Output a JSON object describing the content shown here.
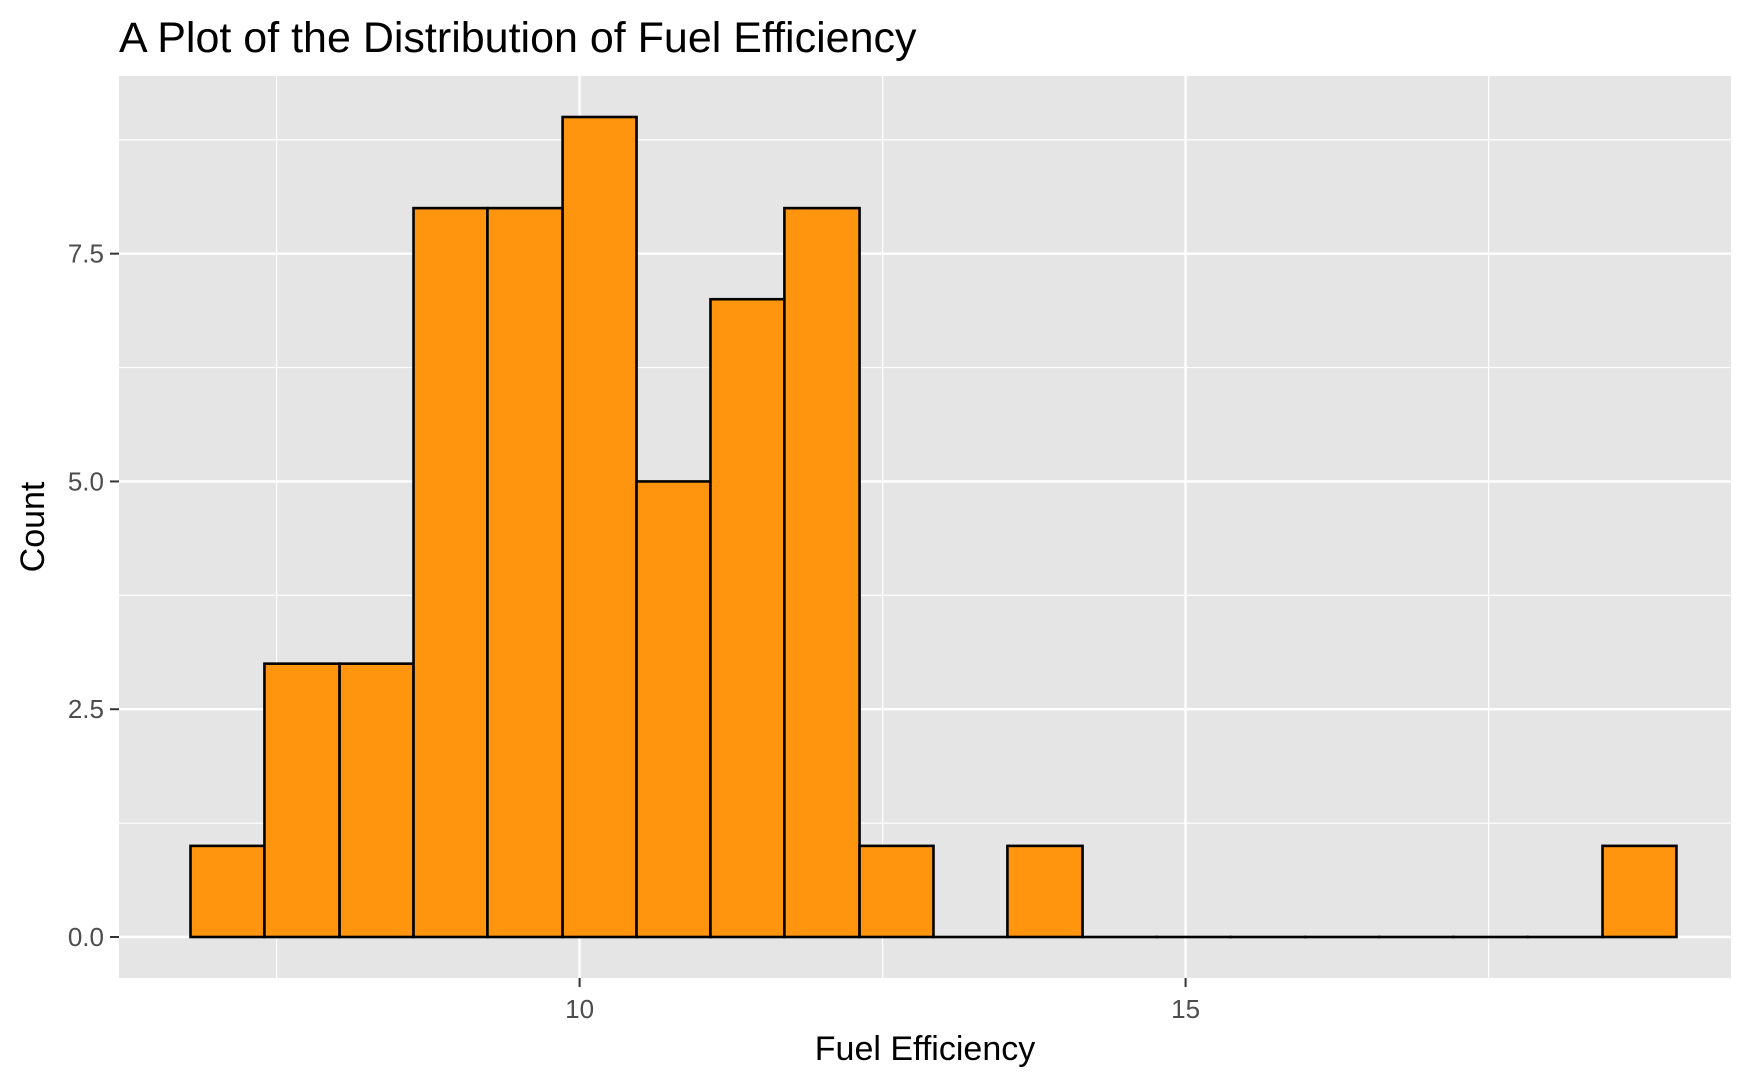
{
  "chart_data": {
    "type": "histogram",
    "title": "A Plot of the Distribution of Fuel Efficiency",
    "xlabel": "Fuel Efficiency",
    "ylabel": "Count",
    "xlim": [
      6.2,
      19.5
    ],
    "ylim": [
      -0.45,
      9.45
    ],
    "x_ticks": [
      10,
      15
    ],
    "x_tick_labels": [
      "10",
      "15"
    ],
    "y_ticks": [
      0,
      2.5,
      5,
      7.5
    ],
    "y_tick_labels": [
      "0.0",
      "2.5",
      "5.0",
      "7.5"
    ],
    "x_minor_ticks": [
      7.5,
      12.5,
      17.5
    ],
    "y_minor_ticks": [
      1.25,
      3.75,
      6.25,
      8.75
    ],
    "bin_width": 0.613,
    "bins": [
      {
        "start": 6.79,
        "end": 7.4,
        "count": 1
      },
      {
        "start": 7.4,
        "end": 8.02,
        "count": 3
      },
      {
        "start": 8.02,
        "end": 8.63,
        "count": 3
      },
      {
        "start": 8.63,
        "end": 9.24,
        "count": 8
      },
      {
        "start": 9.24,
        "end": 9.86,
        "count": 8
      },
      {
        "start": 9.86,
        "end": 10.47,
        "count": 9
      },
      {
        "start": 10.47,
        "end": 11.08,
        "count": 5
      },
      {
        "start": 11.08,
        "end": 11.69,
        "count": 7
      },
      {
        "start": 11.69,
        "end": 12.31,
        "count": 8
      },
      {
        "start": 12.31,
        "end": 12.92,
        "count": 1
      },
      {
        "start": 12.92,
        "end": 13.53,
        "count": 0
      },
      {
        "start": 13.53,
        "end": 14.15,
        "count": 1
      },
      {
        "start": 14.15,
        "end": 14.76,
        "count": 0
      },
      {
        "start": 14.76,
        "end": 15.37,
        "count": 0
      },
      {
        "start": 15.37,
        "end": 15.99,
        "count": 0
      },
      {
        "start": 15.99,
        "end": 16.6,
        "count": 0
      },
      {
        "start": 16.6,
        "end": 17.21,
        "count": 0
      },
      {
        "start": 17.21,
        "end": 17.82,
        "count": 0
      },
      {
        "start": 17.82,
        "end": 18.44,
        "count": 0
      },
      {
        "start": 18.44,
        "end": 19.05,
        "count": 1
      }
    ],
    "bar_fill": "#FF950E",
    "bar_outline": "#000000",
    "panel_background": "#E5E5E5",
    "grid_color": "#FFFFFF",
    "grid": true,
    "legend": "none"
  }
}
